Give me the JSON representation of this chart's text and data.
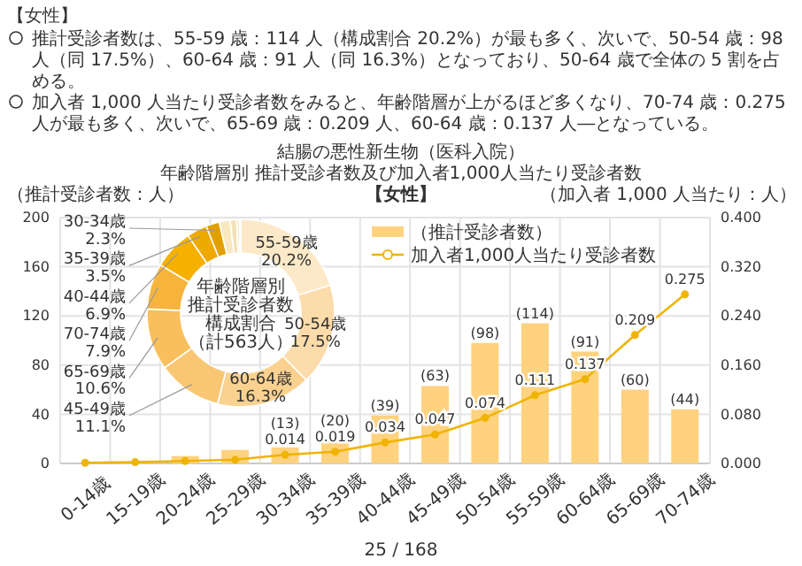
{
  "chart_data": [
    {
      "type": "bar",
      "title": "結腸の悪性新生物（医科入院）",
      "subtitle": "年齢階層別 推計受診者数及び加入者1,000人当たり受診者数",
      "annotations": [
        "【女性】",
        "推計受診者数は、55-59 歳：114 人（構成割合 20.2%）が最も多く、次いで、50-54 歳：98 人（同 17.5%）、60-64 歳：91 人（同 16.3%）となっており、50-64 歳で全体の 5 割を占める。",
        "加入者 1,000 人当たり受診者数をみると、年齢階層が上がるほど多くなり、70-74 歳：0.275 人が最も多く、次いで、65-69 歳：0.209 人、60-64 歳：0.137 人―となっている。",
        "【女性】",
        "25 / 168"
      ],
      "categories": [
        "0-14歳",
        "15-19歳",
        "20-24歳",
        "25-29歳",
        "30-34歳",
        "35-39歳",
        "40-44歳",
        "45-49歳",
        "50-54歳",
        "55-59歳",
        "60-64歳",
        "65-69歳",
        "70-74歳"
      ],
      "ylabel": "（推計受診者数：人）",
      "y2label": "（加入者 1,000 人当たり：人）",
      "ylim": [
        0,
        200
      ],
      "yticks": [
        0,
        40,
        80,
        120,
        160,
        200
      ],
      "y2lim": [
        0,
        0.4
      ],
      "y2ticks": [
        {
          "value": 0,
          "label": "0.000"
        },
        {
          "value": 0.08,
          "label": "0.080"
        },
        {
          "value": 0.16,
          "label": "0.160"
        },
        {
          "value": 0.24,
          "label": "0.240"
        },
        {
          "value": 0.32,
          "label": "0.320"
        },
        {
          "value": 0.4,
          "label": "0.400"
        }
      ],
      "grid": true,
      "legend": "top right",
      "series": [
        {
          "type": "bar",
          "name": "（推計受診者数）",
          "color": "#ffd27f",
          "values": [
            null,
            null,
            6,
            11,
            13,
            20,
            39,
            63,
            98,
            114,
            91,
            60,
            44
          ],
          "value_labels": [
            null,
            null,
            null,
            null,
            "(13)",
            "(20)",
            "(39)",
            "(63)",
            "(98)",
            "(114)",
            "(91)",
            "(60)",
            "(44)"
          ]
        },
        {
          "type": "line",
          "axis": "y2",
          "name": "加入者1,000人当たり受診者数",
          "color": "#f0b400",
          "marker": "circle",
          "line_style": "solid",
          "values": [
            0.001,
            0.002,
            0.004,
            0.006,
            0.014,
            0.019,
            0.034,
            0.047,
            0.074,
            0.111,
            0.137,
            0.209,
            0.275
          ],
          "value_labels": [
            null,
            null,
            null,
            null,
            "0.014",
            "0.019",
            "0.034",
            "0.047",
            "0.074",
            "0.111",
            "0.137",
            "0.209",
            "0.275"
          ]
        }
      ]
    },
    {
      "type": "donut",
      "annotations": [
        "年齢階層別",
        "推計受診者数",
        "構成割合",
        "（計563人）"
      ],
      "categories": [
        "55-59歳",
        "50-54歳",
        "60-64歳",
        "45-49歳",
        "65-69歳",
        "70-74歳",
        "40-44歳",
        "35-39歳",
        "30-34歳",
        null,
        null,
        null,
        null
      ],
      "values": [
        20.2,
        17.5,
        16.3,
        11.1,
        10.6,
        7.9,
        6.9,
        3.5,
        2.3,
        1.9,
        1.1,
        0.5,
        0.2
      ],
      "value_labels": [
        "20.2%",
        "17.5%",
        "16.3%",
        "11.1%",
        "10.6%",
        "7.9%",
        "6.9%",
        "3.5%",
        "2.3%",
        null,
        null,
        null,
        null
      ],
      "colors": [
        "#fde9c8",
        "#fcdcaa",
        "#fbd190",
        "#f9c773",
        "#f8bf5c",
        "#f6b43c",
        "#f5b000",
        "#eeaa00",
        "#e0a000",
        "#f8e8c0",
        "#f3e2b8",
        "#f8ecc8",
        "#f3e2b8"
      ]
    }
  ]
}
